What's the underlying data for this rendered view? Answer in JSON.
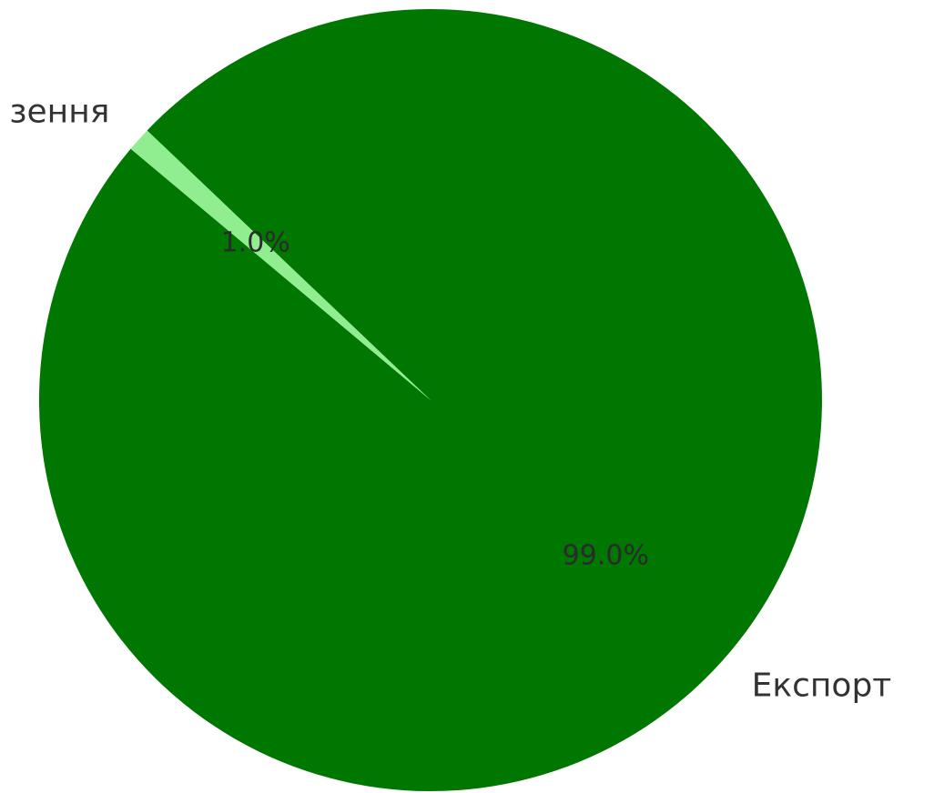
{
  "chart_data": {
    "type": "pie",
    "slices": [
      {
        "label": "Експорт",
        "value": 99.0,
        "pct_label": "99.0%",
        "color": "#007700"
      },
      {
        "label": "зення",
        "value": 1.0,
        "pct_label": "1.0%",
        "color": "#90ee90"
      }
    ],
    "start_angle_deg": 140,
    "direction": "counterclockwise"
  }
}
